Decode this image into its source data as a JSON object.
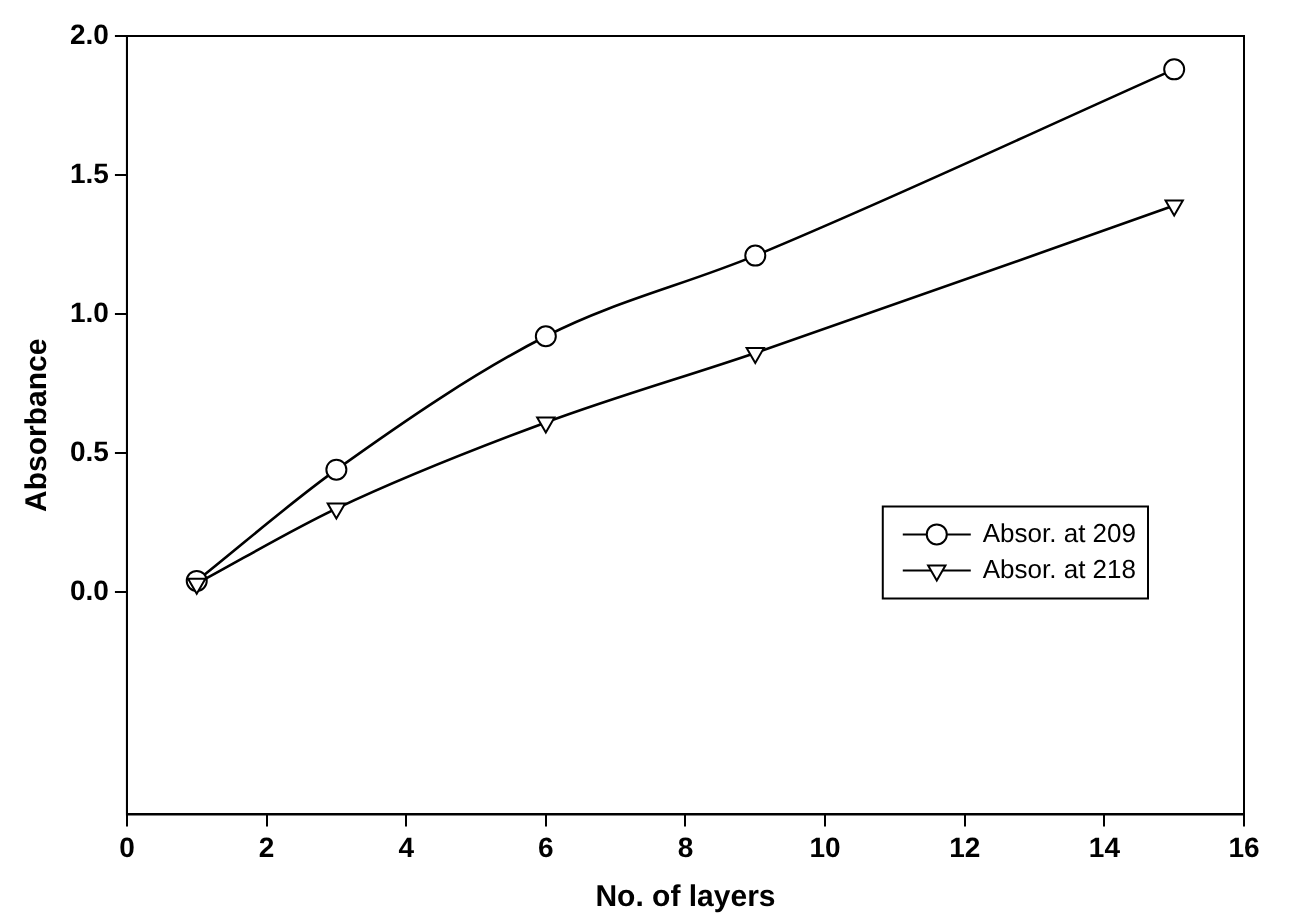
{
  "chart_data": {
    "type": "line",
    "xlabel": "No. of layers",
    "ylabel": "Absorbance",
    "xlim": [
      0,
      16
    ],
    "xticks": [
      0,
      2,
      4,
      6,
      8,
      10,
      12,
      14,
      16
    ],
    "ylim": [
      -0.8,
      2.0
    ],
    "yticks": [
      {
        "value": 0,
        "label": "0.0"
      },
      {
        "value": 0.5,
        "label": "0.5"
      },
      {
        "value": 1,
        "label": "1.0"
      },
      {
        "value": 1.5,
        "label": "1.5"
      },
      {
        "value": 2,
        "label": "2.0"
      }
    ],
    "x": [
      1,
      3,
      6,
      9,
      15
    ],
    "series": [
      {
        "name": "Absor. at 209",
        "color": "#000000",
        "marker": "circle",
        "values": [
          0.04,
          0.44,
          0.92,
          1.21,
          1.88
        ]
      },
      {
        "name": "Absor. at 218",
        "color": "#000000",
        "marker": "triangle",
        "values": [
          0.03,
          0.3,
          0.61,
          0.86,
          1.39
        ]
      }
    ],
    "grid": false,
    "legend": "bottom right",
    "line_style": "solid"
  }
}
